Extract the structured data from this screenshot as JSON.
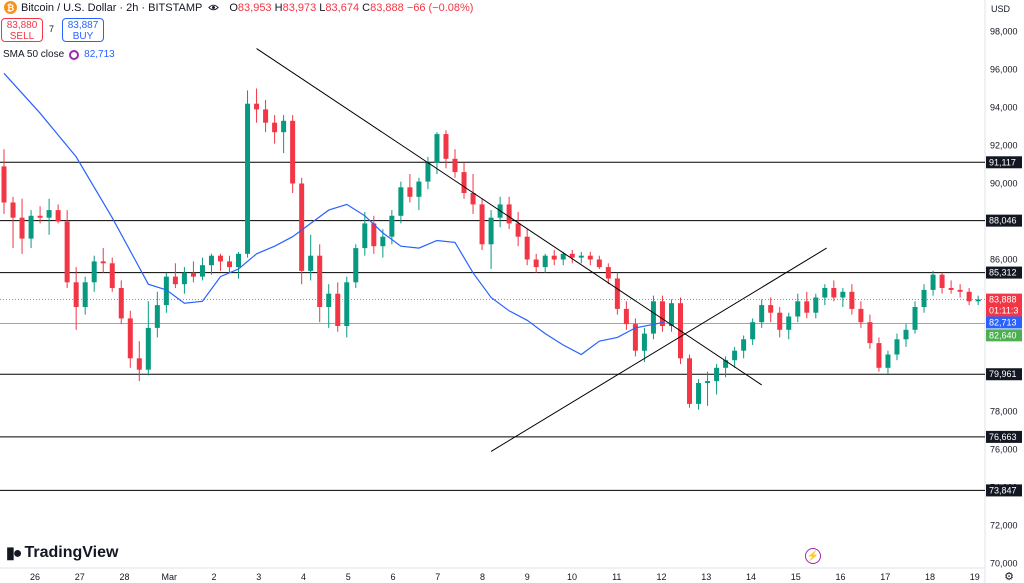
{
  "header": {
    "symbol_title": "Bitcoin / U.S. Dollar · 2h · BITSTAMP",
    "ohlc": {
      "o_label": "O",
      "o": "83,953",
      "h_label": "H",
      "h": "83,973",
      "l_label": "L",
      "l": "83,674",
      "c_label": "C",
      "c": "83,888",
      "change": "−66 (−0.08%)"
    },
    "sell_price": "83,880",
    "sell_label": "SELL",
    "buy_price": "83,887",
    "buy_label": "BUY",
    "spread": "7",
    "indicator_label": "SMA 50 close",
    "indicator_value": "82,713",
    "currency": "USD"
  },
  "branding": {
    "logo_text": "TradingView"
  },
  "colors": {
    "up": "#089981",
    "down": "#f23645",
    "sma": "#2962ff",
    "line": "#000000",
    "price_tag": "#f23645",
    "green_line": "#4caf50"
  },
  "icons": [
    "bitcoin-icon",
    "eye-icon",
    "sma-indicator-icon",
    "tradingview-logo-icon",
    "lightning-icon",
    "gear-icon"
  ],
  "chart_data": {
    "type": "candlestick",
    "x_tick_labels": [
      "26",
      "27",
      "28",
      "Mar",
      "2",
      "3",
      "4",
      "5",
      "6",
      "7",
      "8",
      "9",
      "10",
      "11",
      "12",
      "13",
      "14",
      "15",
      "16",
      "17",
      "18",
      "19"
    ],
    "y_tick_labels": [
      "98,000",
      "96,000",
      "94,000",
      "92,000",
      "90,000",
      "88,000",
      "86,000",
      "84,000",
      "82,000",
      "80,000",
      "78,000",
      "76,000",
      "74,000",
      "72,000",
      "70,000"
    ],
    "ylim": [
      69700,
      99200
    ],
    "horizontal_levels": [
      91117,
      88046,
      85312,
      79961,
      76663,
      73847
    ],
    "horizontal_level_labels": [
      "91,117",
      "88,046",
      "85,312",
      "79,961",
      "76,663",
      "73,847"
    ],
    "price_markers": [
      {
        "label": "83,888",
        "value": 83888,
        "color": "#f23645"
      },
      {
        "label": "01:11:3",
        "value": 83500,
        "color": "#f23645"
      },
      {
        "label": "82,713",
        "value": 82713,
        "color": "#2962ff"
      },
      {
        "label": "82,640",
        "value": 82640,
        "color": "#4caf50"
      }
    ],
    "trendlines": [
      {
        "name": "descending",
        "from": [
          7.0,
          97100
        ],
        "to": [
          21.0,
          79400
        ]
      },
      {
        "name": "ascending",
        "from": [
          13.5,
          75900
        ],
        "to": [
          22.8,
          86600
        ]
      }
    ],
    "sma": [
      [
        0,
        95800
      ],
      [
        1,
        93700
      ],
      [
        2,
        91400
      ],
      [
        3,
        88200
      ],
      [
        3.6,
        86100
      ],
      [
        4,
        84700
      ],
      [
        4.5,
        84400
      ],
      [
        5,
        83700
      ],
      [
        5.5,
        83800
      ],
      [
        6,
        85100
      ],
      [
        6.5,
        85500
      ],
      [
        7,
        86300
      ],
      [
        7.5,
        86700
      ],
      [
        8,
        87200
      ],
      [
        8.5,
        87900
      ],
      [
        9,
        88600
      ],
      [
        9.5,
        88900
      ],
      [
        10,
        88300
      ],
      [
        10.5,
        87400
      ],
      [
        11,
        86700
      ],
      [
        11.5,
        86600
      ],
      [
        12,
        87000
      ],
      [
        12.5,
        86900
      ],
      [
        13,
        85300
      ],
      [
        13.5,
        84000
      ],
      [
        14,
        83300
      ],
      [
        14.5,
        82800
      ],
      [
        15,
        82100
      ],
      [
        15.5,
        81500
      ],
      [
        16,
        81000
      ],
      [
        16.5,
        81700
      ],
      [
        17,
        81900
      ],
      [
        17.5,
        82400
      ],
      [
        18.3,
        82700
      ]
    ],
    "candles": [
      [
        0.0,
        90900,
        91800,
        88400,
        89000
      ],
      [
        0.25,
        89000,
        89300,
        86600,
        88200
      ],
      [
        0.5,
        88200,
        89200,
        86300,
        87100
      ],
      [
        0.75,
        87100,
        88600,
        86600,
        88300
      ],
      [
        1.0,
        88300,
        88800,
        87900,
        88200
      ],
      [
        1.25,
        88200,
        89200,
        87300,
        88600
      ],
      [
        1.5,
        88600,
        88900,
        87900,
        88000
      ],
      [
        1.75,
        88000,
        88600,
        84500,
        84800
      ],
      [
        2.0,
        84800,
        85600,
        82300,
        83500
      ],
      [
        2.25,
        83500,
        85100,
        83100,
        84800
      ],
      [
        2.5,
        84800,
        86200,
        84300,
        85900
      ],
      [
        2.75,
        85900,
        86600,
        85300,
        85800
      ],
      [
        3.0,
        85800,
        86100,
        84300,
        84500
      ],
      [
        3.25,
        84500,
        84900,
        82600,
        82900
      ],
      [
        3.5,
        82900,
        83300,
        80300,
        80800
      ],
      [
        3.75,
        80800,
        81700,
        79600,
        80200
      ],
      [
        4.0,
        80200,
        83800,
        79900,
        82400
      ],
      [
        4.25,
        82400,
        84300,
        81900,
        83600
      ],
      [
        4.5,
        83600,
        85300,
        83200,
        85100
      ],
      [
        4.75,
        85100,
        85800,
        84500,
        84700
      ],
      [
        5.0,
        84700,
        85600,
        84200,
        85300
      ],
      [
        5.25,
        85300,
        85900,
        84800,
        85100
      ],
      [
        5.5,
        85100,
        86100,
        84900,
        85700
      ],
      [
        5.75,
        85700,
        86300,
        85200,
        86200
      ],
      [
        6.0,
        86200,
        86300,
        85400,
        85900
      ],
      [
        6.25,
        85900,
        86200,
        85300,
        85600
      ],
      [
        6.5,
        85600,
        86400,
        85000,
        86300
      ],
      [
        6.75,
        86300,
        94900,
        86100,
        94200
      ],
      [
        7.0,
        94200,
        95000,
        93200,
        93900
      ],
      [
        7.25,
        93900,
        94400,
        92700,
        93200
      ],
      [
        7.5,
        93200,
        93600,
        92100,
        92700
      ],
      [
        7.75,
        92700,
        93600,
        91600,
        93300
      ],
      [
        8.0,
        93300,
        93600,
        89500,
        90000
      ],
      [
        8.25,
        90000,
        90300,
        84700,
        85400
      ],
      [
        8.5,
        85400,
        87300,
        84900,
        86200
      ],
      [
        8.75,
        86200,
        86800,
        82700,
        83500
      ],
      [
        9.0,
        83500,
        84700,
        82400,
        84200
      ],
      [
        9.25,
        84200,
        84800,
        82200,
        82500
      ],
      [
        9.5,
        82500,
        85100,
        81900,
        84800
      ],
      [
        9.75,
        84800,
        86800,
        84500,
        86600
      ],
      [
        10.0,
        86600,
        88500,
        86200,
        87900
      ],
      [
        10.25,
        87900,
        88300,
        86300,
        86700
      ],
      [
        10.5,
        86700,
        87600,
        86100,
        87200
      ],
      [
        10.75,
        87200,
        88600,
        86800,
        88300
      ],
      [
        11.0,
        88300,
        90100,
        87900,
        89800
      ],
      [
        11.25,
        89800,
        90500,
        89000,
        89300
      ],
      [
        11.5,
        89300,
        90300,
        88600,
        90100
      ],
      [
        11.75,
        90100,
        91400,
        89700,
        91100
      ],
      [
        12.0,
        91100,
        92700,
        90500,
        92600
      ],
      [
        12.25,
        92600,
        92800,
        90800,
        91300
      ],
      [
        12.5,
        91300,
        91800,
        90300,
        90600
      ],
      [
        12.75,
        90600,
        91100,
        89200,
        89500
      ],
      [
        13.0,
        89500,
        90500,
        88400,
        88900
      ],
      [
        13.25,
        88900,
        89200,
        86500,
        86800
      ],
      [
        13.5,
        86800,
        88600,
        85500,
        88200
      ],
      [
        13.75,
        88200,
        89300,
        87700,
        88900
      ],
      [
        14.0,
        88900,
        89300,
        87600,
        87900
      ],
      [
        14.25,
        87900,
        88500,
        86700,
        87200
      ],
      [
        14.5,
        87200,
        87600,
        85700,
        86000
      ],
      [
        14.75,
        86000,
        86300,
        85300,
        85600
      ],
      [
        15.0,
        85600,
        86300,
        85300,
        86200
      ],
      [
        15.25,
        86200,
        86500,
        85700,
        86000
      ],
      [
        15.5,
        86000,
        86400,
        85700,
        86300
      ],
      [
        15.75,
        86300,
        86500,
        85800,
        86100
      ],
      [
        16.0,
        86100,
        86400,
        85800,
        86200
      ],
      [
        16.25,
        86200,
        86400,
        85700,
        86000
      ],
      [
        16.5,
        86000,
        86200,
        85500,
        85600
      ],
      [
        16.75,
        85600,
        85800,
        84700,
        85000
      ],
      [
        17.0,
        85000,
        85300,
        83100,
        83400
      ],
      [
        17.25,
        83400,
        83800,
        82300,
        82600
      ],
      [
        17.5,
        82600,
        82900,
        80900,
        81200
      ],
      [
        17.75,
        81200,
        82400,
        80600,
        82100
      ],
      [
        18.0,
        82100,
        84100,
        81800,
        83800
      ],
      [
        18.25,
        83800,
        84100,
        82200,
        82500
      ],
      [
        18.5,
        82500,
        83900,
        82200,
        83700
      ],
      [
        18.75,
        83700,
        84000,
        80500,
        80800
      ],
      [
        19.0,
        80800,
        81000,
        78200,
        78400
      ],
      [
        19.25,
        78400,
        79700,
        78100,
        79500
      ],
      [
        19.5,
        79500,
        80100,
        78300,
        79600
      ],
      [
        19.75,
        79600,
        80500,
        78900,
        80300
      ],
      [
        20.0,
        80300,
        80900,
        79800,
        80700
      ],
      [
        20.25,
        80700,
        81400,
        80300,
        81200
      ],
      [
        20.5,
        81200,
        82000,
        80800,
        81800
      ],
      [
        20.75,
        81800,
        82900,
        81500,
        82700
      ],
      [
        21.0,
        82700,
        83900,
        82400,
        83600
      ],
      [
        21.25,
        83600,
        84000,
        82700,
        83200
      ],
      [
        21.5,
        83200,
        83500,
        81900,
        82300
      ],
      [
        21.75,
        82300,
        83200,
        81800,
        83000
      ],
      [
        22.0,
        83000,
        84200,
        82700,
        83800
      ],
      [
        22.25,
        83800,
        84300,
        82900,
        83200
      ],
      [
        22.5,
        83200,
        84200,
        82900,
        84000
      ],
      [
        22.75,
        84000,
        84700,
        83600,
        84500
      ],
      [
        23.0,
        84500,
        84900,
        83800,
        84000
      ],
      [
        23.25,
        84000,
        84500,
        83500,
        84300
      ],
      [
        23.5,
        84300,
        84700,
        83100,
        83400
      ],
      [
        23.75,
        83400,
        83800,
        82400,
        82700
      ],
      [
        24.0,
        82700,
        83100,
        81300,
        81600
      ],
      [
        24.25,
        81600,
        81900,
        80100,
        80300
      ],
      [
        24.5,
        80300,
        81200,
        80000,
        81000
      ],
      [
        24.75,
        81000,
        82100,
        80700,
        81800
      ],
      [
        25.0,
        81800,
        82600,
        81400,
        82300
      ],
      [
        25.25,
        82300,
        83800,
        82100,
        83500
      ],
      [
        25.5,
        83500,
        84700,
        83200,
        84400
      ],
      [
        25.75,
        84400,
        85400,
        84100,
        85200
      ],
      [
        26.0,
        85200,
        85300,
        84200,
        84500
      ],
      [
        26.25,
        84500,
        84900,
        84200,
        84400
      ],
      [
        26.5,
        84400,
        84700,
        84000,
        84300
      ],
      [
        26.75,
        84300,
        84500,
        83600,
        83800
      ],
      [
        27.0,
        83800,
        84100,
        83600,
        83900
      ]
    ]
  }
}
